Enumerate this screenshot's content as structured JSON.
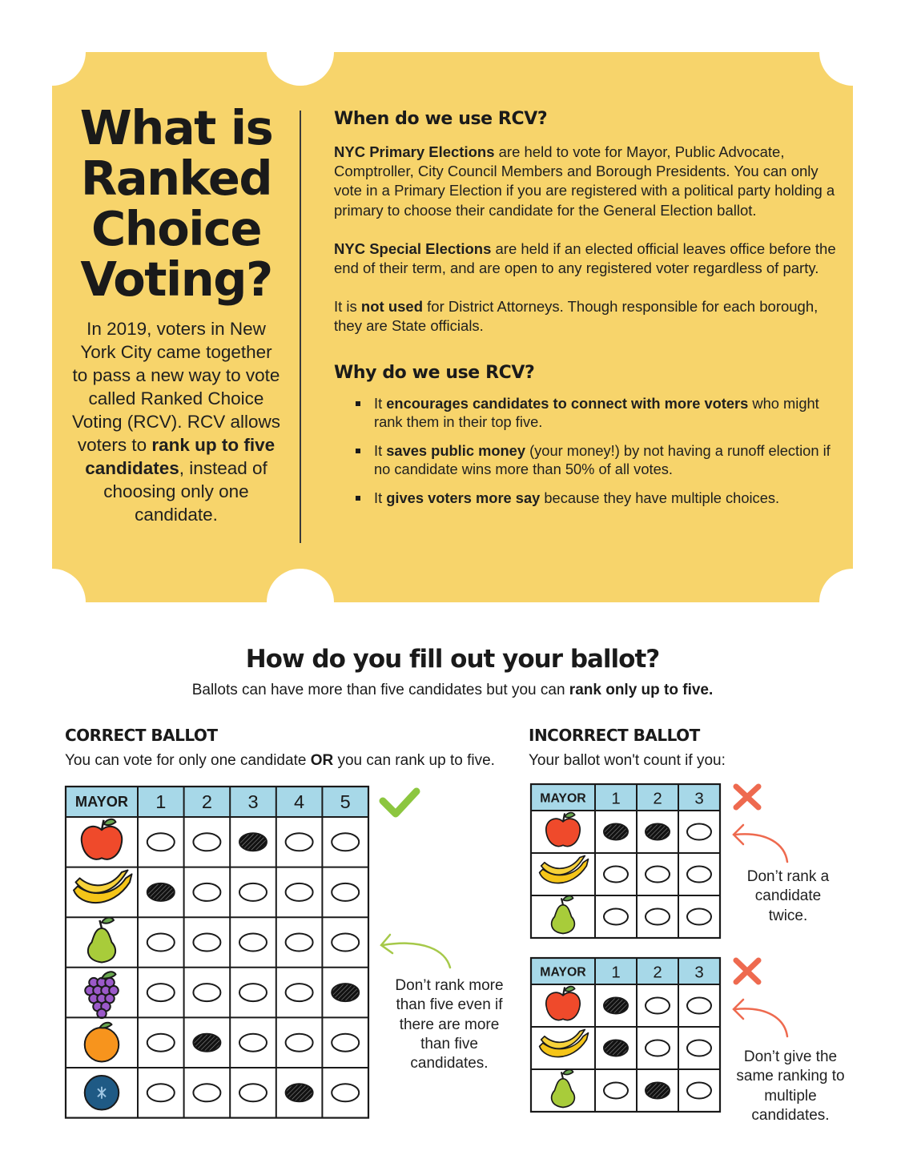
{
  "card": {
    "bg_color": "#f7d46b",
    "title_lines": [
      "What is",
      "Ranked",
      "Choice",
      "Voting?"
    ],
    "intro": {
      "text1": "In 2019, voters in New York City came together to pass a new way to vote called Ranked Choice Voting (RCV). RCV allows voters to ",
      "bold": "rank up to five candidates",
      "text2": ", instead of choosing only one candidate."
    },
    "when": {
      "heading": "When do we use RCV?",
      "primary_bold": "NYC Primary Elections",
      "primary_text": " are held to vote for Mayor, Public Advocate, Comptroller, City Council Members and Borough Presidents. You can only vote in a Primary Election if you are registered with a political party holding a primary to choose their candidate for the General Election ballot.",
      "special_bold": "NYC Special Elections",
      "special_text": " are held if an elected official leaves office before the end of their term, and are open to any registered voter regardless of party.",
      "notused_pre": "It is ",
      "notused_bold": "not used",
      "notused_text": " for District Attorneys. Though responsible for each borough, they are State officials."
    },
    "why": {
      "heading": "Why do we use RCV?",
      "bullets": [
        {
          "pre": "It ",
          "bold": "encourages candidates to connect with more voters",
          "post": " who might rank them in their top five."
        },
        {
          "pre": "It ",
          "bold": "saves public money",
          "post": " (your money!) by not having a runoff election if no candidate wins more than 50% of all votes."
        },
        {
          "pre": "It ",
          "bold": "gives voters more say",
          "post": " because they have multiple choices."
        }
      ]
    }
  },
  "ballot_section": {
    "title": "How do you fill out your ballot?",
    "subtitle_pre": "Ballots can have more than five candidates but you can ",
    "subtitle_bold": "rank only up to five.",
    "correct": {
      "heading": "CORRECT BALLOT",
      "sub_pre": "You can vote for only one candidate ",
      "sub_bold": "OR",
      "sub_post": " you can rank up to five.",
      "header_label": "MAYOR",
      "columns": [
        "1",
        "2",
        "3",
        "4",
        "5"
      ],
      "rows": [
        {
          "icon": "apple-icon",
          "marks": [
            0,
            0,
            1,
            0,
            0
          ]
        },
        {
          "icon": "banana-icon",
          "marks": [
            1,
            0,
            0,
            0,
            0
          ]
        },
        {
          "icon": "pear-icon",
          "marks": [
            0,
            0,
            0,
            0,
            0
          ]
        },
        {
          "icon": "grapes-icon",
          "marks": [
            0,
            0,
            0,
            0,
            1
          ]
        },
        {
          "icon": "orange-icon",
          "marks": [
            0,
            1,
            0,
            0,
            0
          ]
        },
        {
          "icon": "blueberry-icon",
          "marks": [
            0,
            0,
            0,
            1,
            0
          ]
        }
      ],
      "note": "Don’t rank more than five even if there are more than five candidates."
    },
    "incorrect": {
      "heading": "INCORRECT BALLOT",
      "sub": "Your ballot won't count if you:",
      "ballots": [
        {
          "header_label": "MAYOR",
          "columns": [
            "1",
            "2",
            "3"
          ],
          "rows": [
            {
              "icon": "apple-icon",
              "marks": [
                1,
                1,
                0
              ]
            },
            {
              "icon": "banana-icon",
              "marks": [
                0,
                0,
                0
              ]
            },
            {
              "icon": "pear-icon",
              "marks": [
                0,
                0,
                0
              ]
            }
          ],
          "note": "Don’t rank a candidate twice."
        },
        {
          "header_label": "MAYOR",
          "columns": [
            "1",
            "2",
            "3"
          ],
          "rows": [
            {
              "icon": "apple-icon",
              "marks": [
                1,
                0,
                0
              ]
            },
            {
              "icon": "banana-icon",
              "marks": [
                1,
                0,
                0
              ]
            },
            {
              "icon": "pear-icon",
              "marks": [
                0,
                1,
                0
              ]
            }
          ],
          "note": "Don’t give the same ranking to multiple candidates."
        }
      ]
    },
    "colors": {
      "header_blue": "#a7d8e8",
      "check_green": "#8cc63f",
      "x_red": "#ee6a4f",
      "arrow_green": "#a6c94a",
      "arrow_red": "#ee6a4f"
    }
  }
}
